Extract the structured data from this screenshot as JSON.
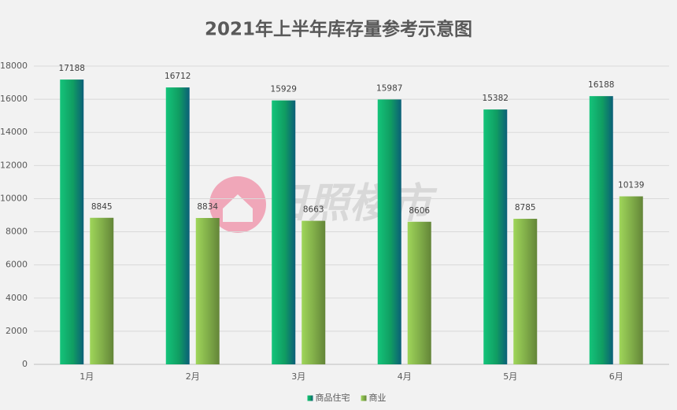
{
  "chart_data": {
    "type": "bar",
    "title": "2021年上半年库存量参考示意图",
    "categories": [
      "1月",
      "2月",
      "3月",
      "4月",
      "5月",
      "6月"
    ],
    "series": [
      {
        "name": "商品住宅",
        "color": "#14c47a",
        "values": [
          17188,
          16712,
          15929,
          15987,
          15382,
          16188
        ]
      },
      {
        "name": "商业",
        "color": "#9fd65a",
        "values": [
          8845,
          8834,
          8663,
          8606,
          8785,
          10139
        ]
      }
    ],
    "ylim": [
      0,
      18000
    ],
    "yticks": [
      0,
      2000,
      4000,
      6000,
      8000,
      10000,
      12000,
      14000,
      16000,
      18000
    ],
    "grid": true,
    "legend": "bottom",
    "watermark": "日照楼市"
  }
}
